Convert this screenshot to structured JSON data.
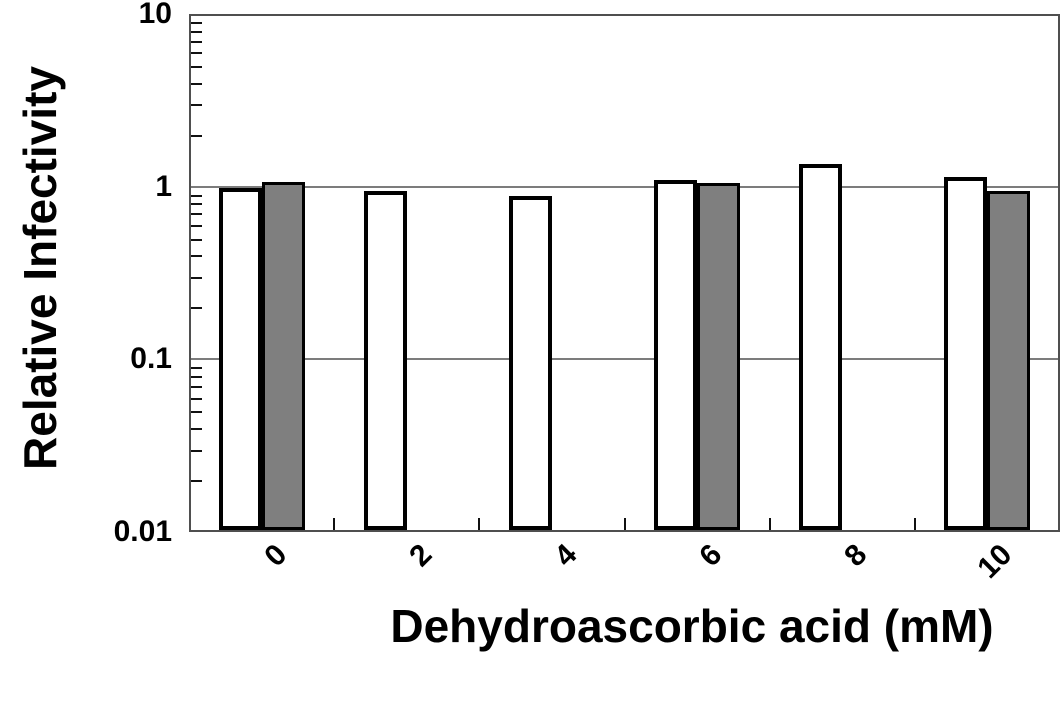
{
  "chart_data": {
    "type": "bar",
    "title": "",
    "xlabel": "Dehydroascorbic acid (mM)",
    "ylabel": "Relative Infectivity",
    "categories": [
      "0",
      "2",
      "4",
      "6",
      "8",
      "10"
    ],
    "series": [
      {
        "name": "open-bars",
        "fill": "#ffffff",
        "border": "#000000",
        "values": [
          0.98,
          0.95,
          0.88,
          1.1,
          1.35,
          1.14
        ]
      },
      {
        "name": "gray-bars",
        "fill": "#7f7f7f",
        "border": "#000000",
        "values": [
          1.06,
          null,
          null,
          1.05,
          null,
          0.94
        ]
      }
    ],
    "y_scale": "log",
    "ylim": [
      0.01,
      10
    ],
    "yticks": [
      {
        "value": 10,
        "label": "10"
      },
      {
        "value": 1,
        "label": "1"
      },
      {
        "value": 0.1,
        "label": "0.1"
      },
      {
        "value": 0.01,
        "label": "0.01"
      }
    ],
    "gridline_values": [
      1,
      0.1
    ],
    "grid": "horizontal-major",
    "legend": "none",
    "colors": {
      "axis": "#4f4f4f",
      "gridline": "#7c7c7c",
      "tick": "#111111",
      "text": "#000000"
    }
  }
}
